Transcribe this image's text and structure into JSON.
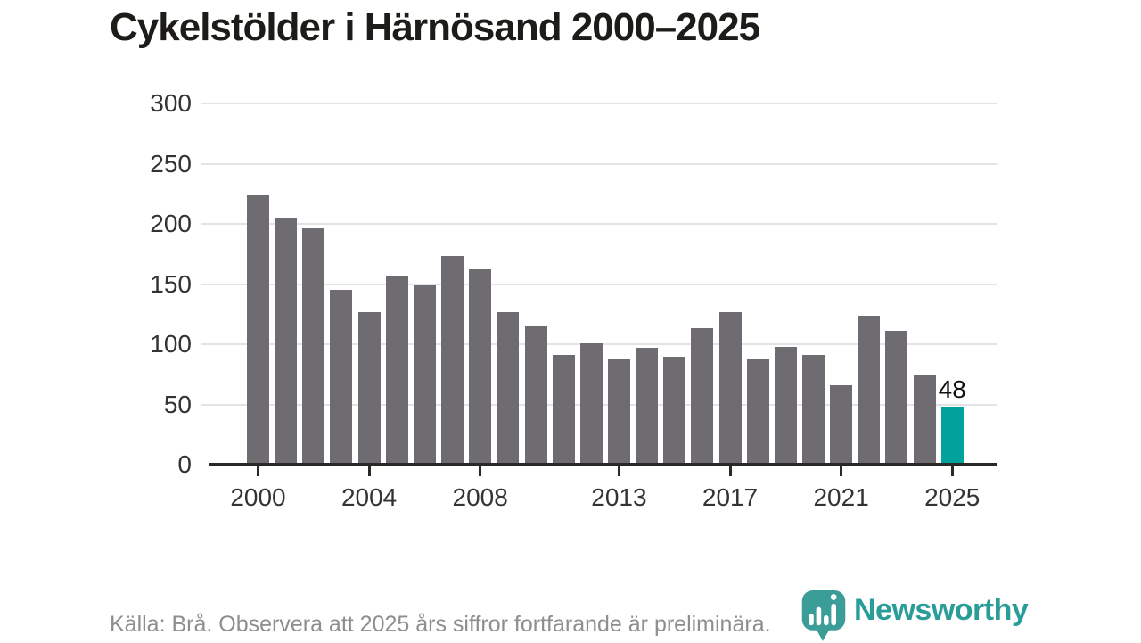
{
  "title": "Cykelstölder i Härnösand 2000–2025",
  "footer": {
    "source_text": "Källa: Brå. Observera att 2025 års siffror fortfarande är preliminära."
  },
  "branding": {
    "wordmark": "Newsworthy",
    "logo_icon": "speech-bubble-bar-chart-icon"
  },
  "colors": {
    "bar": "#6e6b71",
    "highlight": "#00a29b",
    "gridline": "#e3e3e3",
    "axis": "#2b2925",
    "tick_label": "#333333",
    "title": "#1d1c18",
    "footer_text": "#8e8e8e",
    "annotation": "#111111",
    "logo_teal": "#3a9d98",
    "wordmark_teal": "#2a9d98"
  },
  "chart_data": {
    "type": "bar",
    "title": "Cykelstölder i Härnösand 2000–2025",
    "xlabel": "",
    "ylabel": "",
    "categories": [
      2000,
      2001,
      2002,
      2003,
      2004,
      2005,
      2006,
      2007,
      2008,
      2009,
      2010,
      2011,
      2012,
      2013,
      2014,
      2015,
      2016,
      2017,
      2018,
      2019,
      2020,
      2021,
      2022,
      2023,
      2024,
      2025
    ],
    "values": [
      224,
      205,
      196,
      145,
      127,
      156,
      149,
      173,
      162,
      127,
      115,
      91,
      101,
      88,
      97,
      90,
      113,
      127,
      88,
      98,
      91,
      66,
      124,
      111,
      75,
      48
    ],
    "highlight_year": 2025,
    "highlight_value_label": "48",
    "y_ticks": [
      0,
      50,
      100,
      150,
      200,
      250,
      300
    ],
    "ylim": [
      0,
      300
    ],
    "x_tick_years": [
      2000,
      2004,
      2008,
      2013,
      2017,
      2021,
      2025
    ],
    "grid": "horizontal-only",
    "legend": "none",
    "source": "Källa: Brå. Observera att 2025 års siffror fortfarande är preliminära."
  }
}
